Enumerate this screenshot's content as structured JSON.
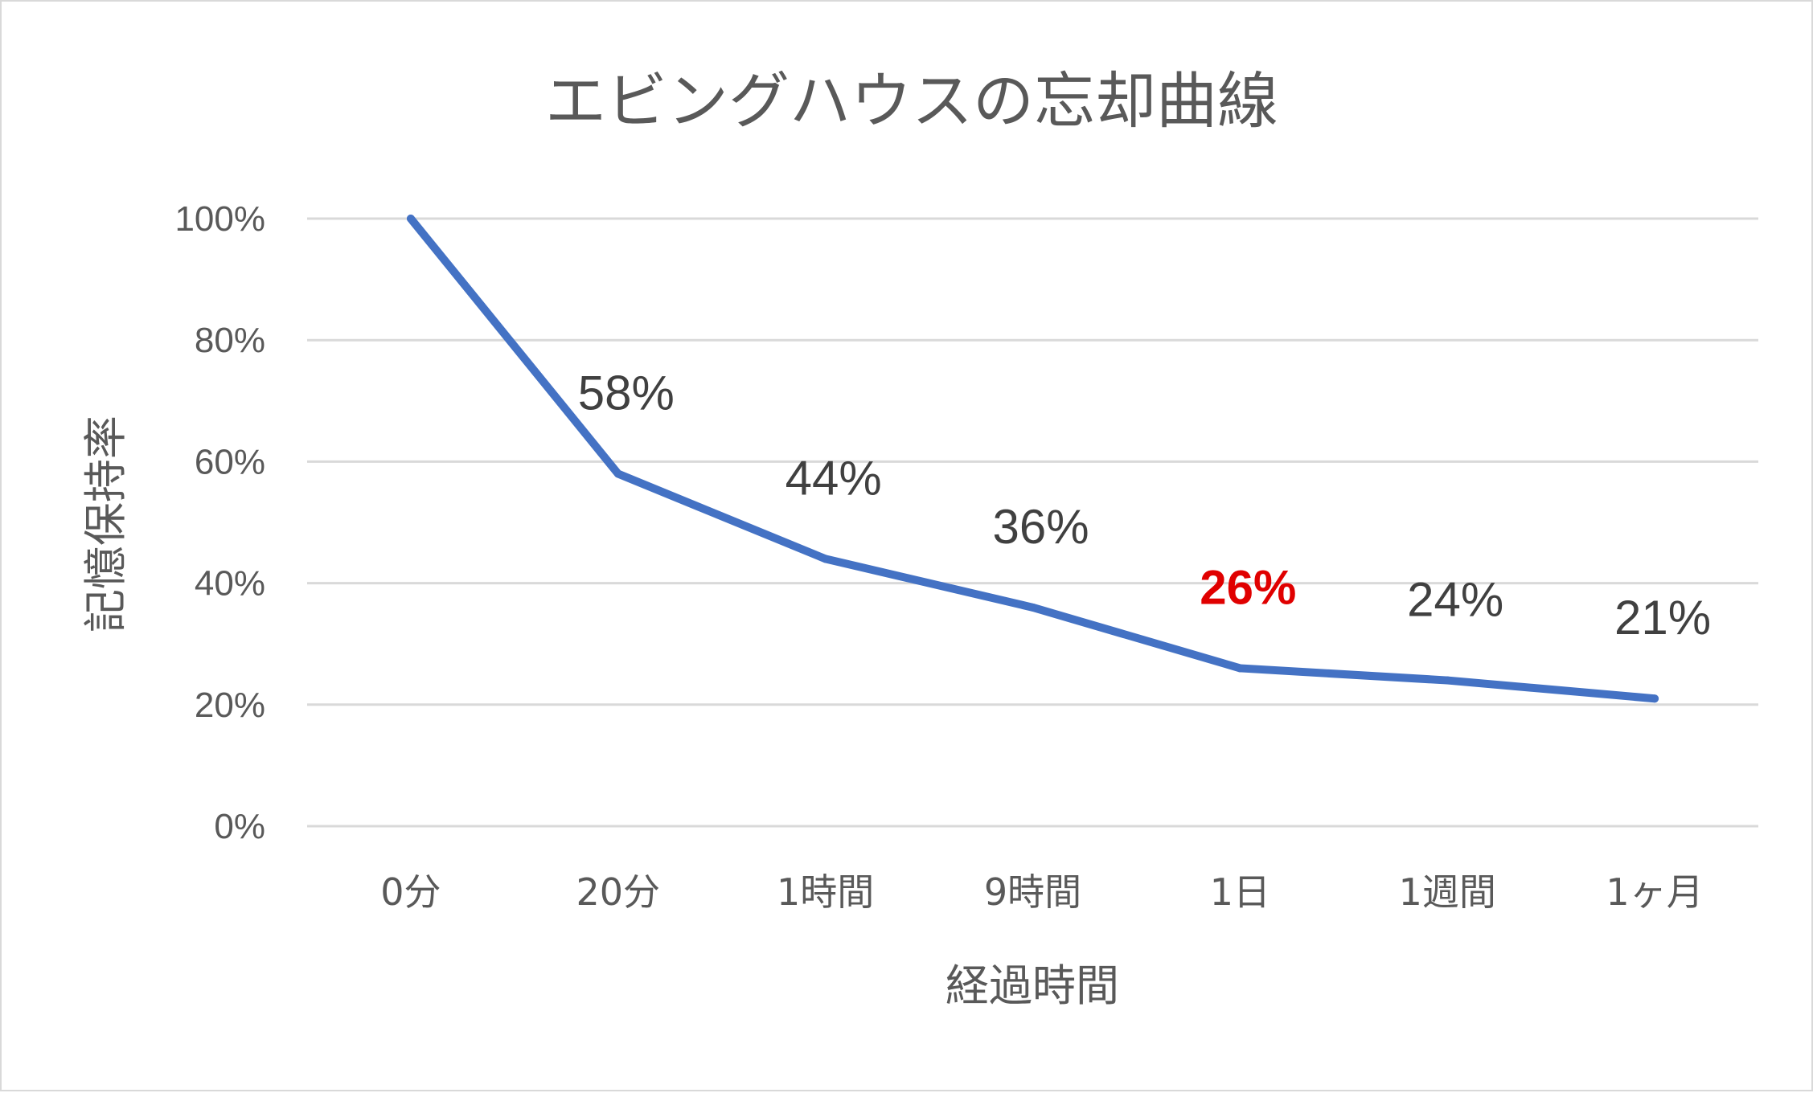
{
  "chart_data": {
    "type": "line",
    "title": "エビングハウスの忘却曲線",
    "xlabel": "経過時間",
    "ylabel": "記憶保持率",
    "categories": [
      "0分",
      "20分",
      "1時間",
      "9時間",
      "1日",
      "1週間",
      "1ヶ月"
    ],
    "series": [
      {
        "values": [
          100,
          58,
          44,
          36,
          26,
          24,
          21
        ],
        "color": "#4472c4"
      }
    ],
    "data_labels": [
      "",
      "58%",
      "44%",
      "36%",
      "26%",
      "24%",
      "21%"
    ],
    "highlight_color": "#e00000",
    "highlight_index": 4,
    "ylim": [
      0,
      100
    ],
    "yticks": [
      0,
      20,
      40,
      60,
      80,
      100
    ],
    "ytick_labels": [
      "0%",
      "20%",
      "40%",
      "60%",
      "80%",
      "100%"
    ],
    "grid": true,
    "legend": "none"
  }
}
